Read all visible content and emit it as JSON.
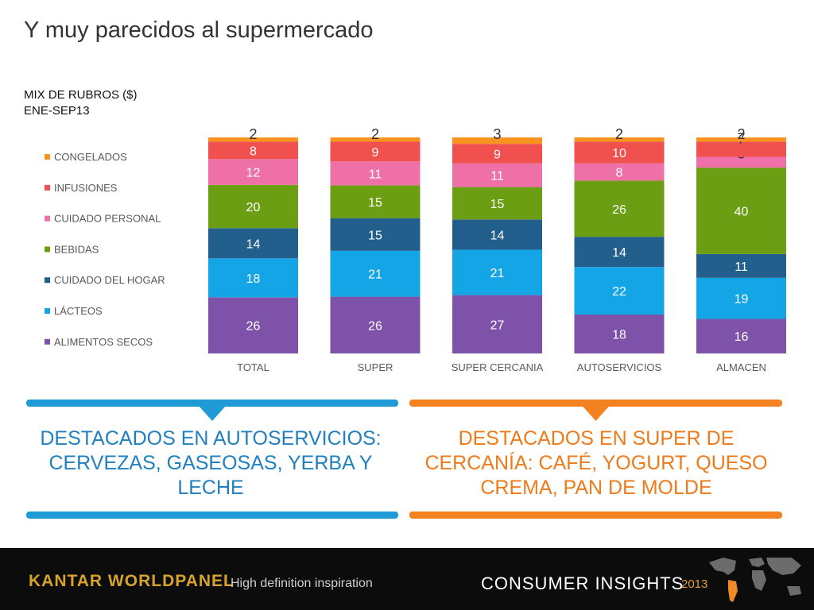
{
  "slide": {
    "title": "Y muy parecidos al supermercado",
    "subtitle_line1": "MIX DE RUBROS ($)",
    "subtitle_line2": "ENE-SEP13"
  },
  "chart_data": {
    "type": "bar",
    "stacked": true,
    "categories": [
      "TOTAL",
      "SUPER",
      "SUPER CERCANIA",
      "AUTOSERVICIOS",
      "ALMACEN"
    ],
    "series": [
      {
        "name": "ALIMENTOS SECOS",
        "color": "#7e52a8",
        "values": [
          26,
          26,
          27,
          18,
          16
        ]
      },
      {
        "name": "LÁCTEOS",
        "color": "#14a5e6",
        "values": [
          18,
          21,
          21,
          22,
          19
        ]
      },
      {
        "name": "CUIDADO DEL HOGAR",
        "color": "#235f8c",
        "values": [
          14,
          15,
          14,
          14,
          11
        ]
      },
      {
        "name": "BEBIDAS",
        "color": "#6b9e12",
        "values": [
          20,
          15,
          15,
          26,
          40
        ]
      },
      {
        "name": "CUIDADO PERSONAL",
        "color": "#ee70a6",
        "values": [
          12,
          11,
          11,
          8,
          5
        ]
      },
      {
        "name": "INFUSIONES",
        "color": "#f0504e",
        "values": [
          8,
          9,
          9,
          10,
          7
        ]
      },
      {
        "name": "CONGELADOS",
        "color": "#f7931e",
        "values": [
          2,
          2,
          3,
          2,
          2
        ]
      }
    ],
    "ylim": [
      0,
      100
    ],
    "legend": "left",
    "grid": false
  },
  "panels": {
    "left": {
      "text": "DESTACADOS EN AUTOSERVICIOS: CERVEZAS, GASEOSAS, YERBA Y LECHE",
      "color": "#1f9ad6"
    },
    "right": {
      "text": "DESTACADOS EN SUPER DE CERCANÍA: CAFÉ, YOGURT, QUESO CREMA, PAN DE MOLDE",
      "color": "#f58220"
    }
  },
  "footer": {
    "brand": "KANTAR WORLDPANEL",
    "tagline": "High definition inspiration",
    "consumer_insights": "CONSUMER INSIGHTS",
    "year": "2013"
  }
}
